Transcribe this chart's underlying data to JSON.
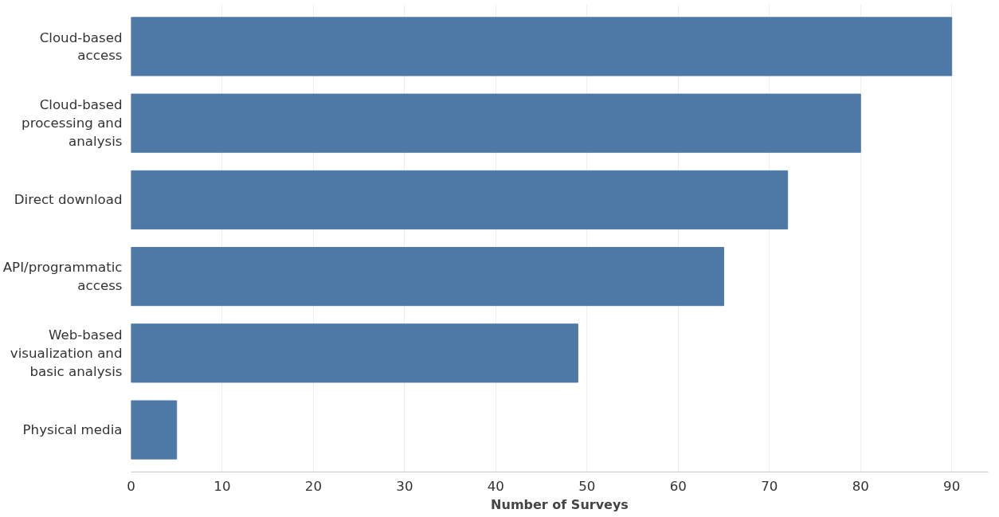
{
  "chart_data": {
    "type": "bar",
    "orientation": "horizontal",
    "xlabel": "Number of Surveys",
    "categories": [
      "Cloud-based access",
      "Cloud-based processing and analysis",
      "Direct download",
      "API/programmatic access",
      "Web-based visualization and basic analysis",
      "Physical media"
    ],
    "values": [
      90,
      80,
      72,
      65,
      49,
      5
    ],
    "color": "#4e79a7",
    "xlim": [
      0,
      94
    ],
    "xticks": [
      0,
      10,
      20,
      30,
      40,
      50,
      60,
      70,
      80,
      90
    ],
    "grid": "x"
  }
}
